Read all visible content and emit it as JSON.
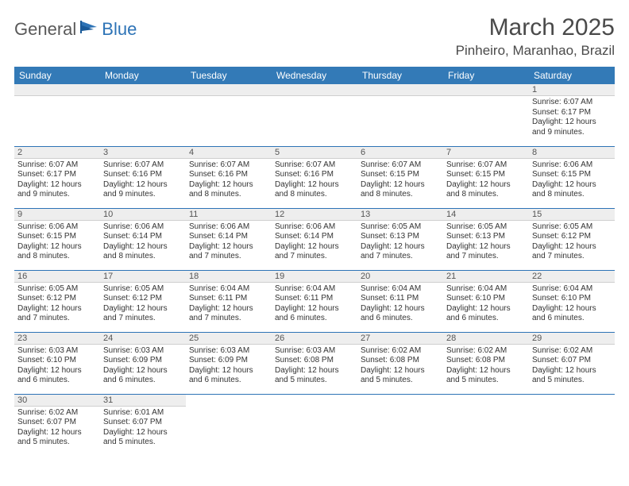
{
  "brand": {
    "part1": "General",
    "part2": "Blue"
  },
  "title": "March 2025",
  "location": "Pinheiro, Maranhao, Brazil",
  "colors": {
    "header_bg": "#337ab7",
    "header_text": "#ffffff",
    "rule": "#2d73b6",
    "daynum_bg": "#eeeeee",
    "text": "#333333",
    "brand_blue": "#2d73b6"
  },
  "weekdays": [
    "Sunday",
    "Monday",
    "Tuesday",
    "Wednesday",
    "Thursday",
    "Friday",
    "Saturday"
  ],
  "weeks": [
    [
      null,
      null,
      null,
      null,
      null,
      null,
      {
        "n": "1",
        "sunrise": "Sunrise: 6:07 AM",
        "sunset": "Sunset: 6:17 PM",
        "daylight1": "Daylight: 12 hours",
        "daylight2": "and 9 minutes."
      }
    ],
    [
      {
        "n": "2",
        "sunrise": "Sunrise: 6:07 AM",
        "sunset": "Sunset: 6:17 PM",
        "daylight1": "Daylight: 12 hours",
        "daylight2": "and 9 minutes."
      },
      {
        "n": "3",
        "sunrise": "Sunrise: 6:07 AM",
        "sunset": "Sunset: 6:16 PM",
        "daylight1": "Daylight: 12 hours",
        "daylight2": "and 9 minutes."
      },
      {
        "n": "4",
        "sunrise": "Sunrise: 6:07 AM",
        "sunset": "Sunset: 6:16 PM",
        "daylight1": "Daylight: 12 hours",
        "daylight2": "and 8 minutes."
      },
      {
        "n": "5",
        "sunrise": "Sunrise: 6:07 AM",
        "sunset": "Sunset: 6:16 PM",
        "daylight1": "Daylight: 12 hours",
        "daylight2": "and 8 minutes."
      },
      {
        "n": "6",
        "sunrise": "Sunrise: 6:07 AM",
        "sunset": "Sunset: 6:15 PM",
        "daylight1": "Daylight: 12 hours",
        "daylight2": "and 8 minutes."
      },
      {
        "n": "7",
        "sunrise": "Sunrise: 6:07 AM",
        "sunset": "Sunset: 6:15 PM",
        "daylight1": "Daylight: 12 hours",
        "daylight2": "and 8 minutes."
      },
      {
        "n": "8",
        "sunrise": "Sunrise: 6:06 AM",
        "sunset": "Sunset: 6:15 PM",
        "daylight1": "Daylight: 12 hours",
        "daylight2": "and 8 minutes."
      }
    ],
    [
      {
        "n": "9",
        "sunrise": "Sunrise: 6:06 AM",
        "sunset": "Sunset: 6:15 PM",
        "daylight1": "Daylight: 12 hours",
        "daylight2": "and 8 minutes."
      },
      {
        "n": "10",
        "sunrise": "Sunrise: 6:06 AM",
        "sunset": "Sunset: 6:14 PM",
        "daylight1": "Daylight: 12 hours",
        "daylight2": "and 8 minutes."
      },
      {
        "n": "11",
        "sunrise": "Sunrise: 6:06 AM",
        "sunset": "Sunset: 6:14 PM",
        "daylight1": "Daylight: 12 hours",
        "daylight2": "and 7 minutes."
      },
      {
        "n": "12",
        "sunrise": "Sunrise: 6:06 AM",
        "sunset": "Sunset: 6:14 PM",
        "daylight1": "Daylight: 12 hours",
        "daylight2": "and 7 minutes."
      },
      {
        "n": "13",
        "sunrise": "Sunrise: 6:05 AM",
        "sunset": "Sunset: 6:13 PM",
        "daylight1": "Daylight: 12 hours",
        "daylight2": "and 7 minutes."
      },
      {
        "n": "14",
        "sunrise": "Sunrise: 6:05 AM",
        "sunset": "Sunset: 6:13 PM",
        "daylight1": "Daylight: 12 hours",
        "daylight2": "and 7 minutes."
      },
      {
        "n": "15",
        "sunrise": "Sunrise: 6:05 AM",
        "sunset": "Sunset: 6:12 PM",
        "daylight1": "Daylight: 12 hours",
        "daylight2": "and 7 minutes."
      }
    ],
    [
      {
        "n": "16",
        "sunrise": "Sunrise: 6:05 AM",
        "sunset": "Sunset: 6:12 PM",
        "daylight1": "Daylight: 12 hours",
        "daylight2": "and 7 minutes."
      },
      {
        "n": "17",
        "sunrise": "Sunrise: 6:05 AM",
        "sunset": "Sunset: 6:12 PM",
        "daylight1": "Daylight: 12 hours",
        "daylight2": "and 7 minutes."
      },
      {
        "n": "18",
        "sunrise": "Sunrise: 6:04 AM",
        "sunset": "Sunset: 6:11 PM",
        "daylight1": "Daylight: 12 hours",
        "daylight2": "and 7 minutes."
      },
      {
        "n": "19",
        "sunrise": "Sunrise: 6:04 AM",
        "sunset": "Sunset: 6:11 PM",
        "daylight1": "Daylight: 12 hours",
        "daylight2": "and 6 minutes."
      },
      {
        "n": "20",
        "sunrise": "Sunrise: 6:04 AM",
        "sunset": "Sunset: 6:11 PM",
        "daylight1": "Daylight: 12 hours",
        "daylight2": "and 6 minutes."
      },
      {
        "n": "21",
        "sunrise": "Sunrise: 6:04 AM",
        "sunset": "Sunset: 6:10 PM",
        "daylight1": "Daylight: 12 hours",
        "daylight2": "and 6 minutes."
      },
      {
        "n": "22",
        "sunrise": "Sunrise: 6:04 AM",
        "sunset": "Sunset: 6:10 PM",
        "daylight1": "Daylight: 12 hours",
        "daylight2": "and 6 minutes."
      }
    ],
    [
      {
        "n": "23",
        "sunrise": "Sunrise: 6:03 AM",
        "sunset": "Sunset: 6:10 PM",
        "daylight1": "Daylight: 12 hours",
        "daylight2": "and 6 minutes."
      },
      {
        "n": "24",
        "sunrise": "Sunrise: 6:03 AM",
        "sunset": "Sunset: 6:09 PM",
        "daylight1": "Daylight: 12 hours",
        "daylight2": "and 6 minutes."
      },
      {
        "n": "25",
        "sunrise": "Sunrise: 6:03 AM",
        "sunset": "Sunset: 6:09 PM",
        "daylight1": "Daylight: 12 hours",
        "daylight2": "and 6 minutes."
      },
      {
        "n": "26",
        "sunrise": "Sunrise: 6:03 AM",
        "sunset": "Sunset: 6:08 PM",
        "daylight1": "Daylight: 12 hours",
        "daylight2": "and 5 minutes."
      },
      {
        "n": "27",
        "sunrise": "Sunrise: 6:02 AM",
        "sunset": "Sunset: 6:08 PM",
        "daylight1": "Daylight: 12 hours",
        "daylight2": "and 5 minutes."
      },
      {
        "n": "28",
        "sunrise": "Sunrise: 6:02 AM",
        "sunset": "Sunset: 6:08 PM",
        "daylight1": "Daylight: 12 hours",
        "daylight2": "and 5 minutes."
      },
      {
        "n": "29",
        "sunrise": "Sunrise: 6:02 AM",
        "sunset": "Sunset: 6:07 PM",
        "daylight1": "Daylight: 12 hours",
        "daylight2": "and 5 minutes."
      }
    ],
    [
      {
        "n": "30",
        "sunrise": "Sunrise: 6:02 AM",
        "sunset": "Sunset: 6:07 PM",
        "daylight1": "Daylight: 12 hours",
        "daylight2": "and 5 minutes."
      },
      {
        "n": "31",
        "sunrise": "Sunrise: 6:01 AM",
        "sunset": "Sunset: 6:07 PM",
        "daylight1": "Daylight: 12 hours",
        "daylight2": "and 5 minutes."
      },
      null,
      null,
      null,
      null,
      null
    ]
  ]
}
